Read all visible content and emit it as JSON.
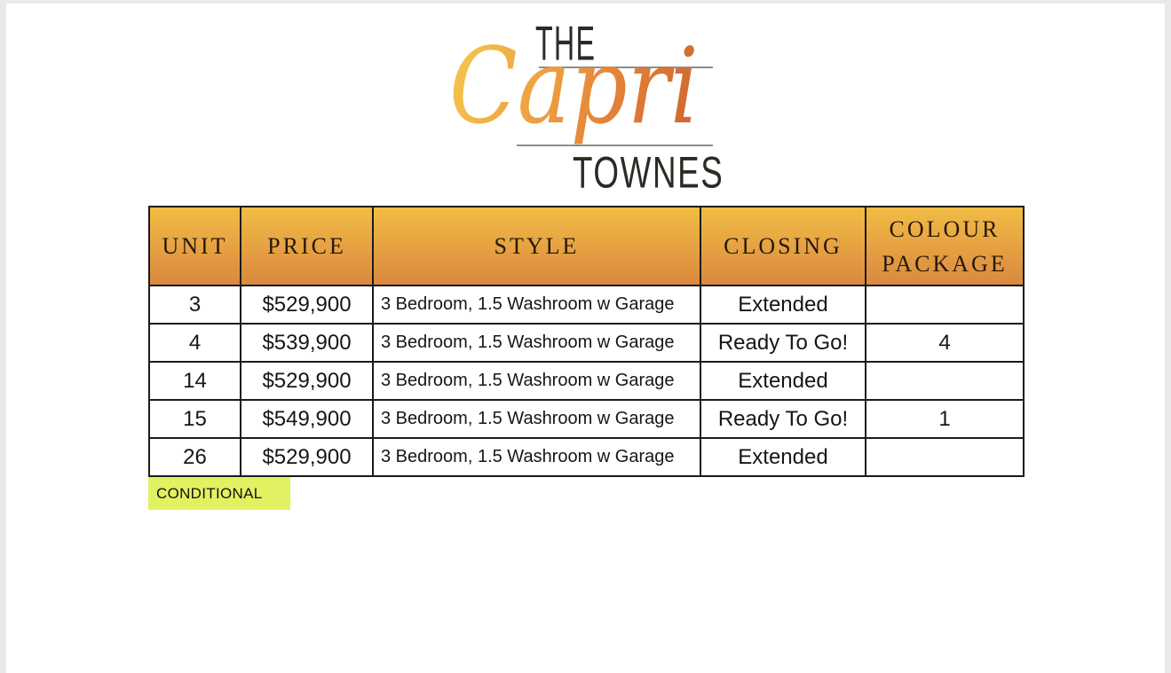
{
  "window": {
    "background_color": "#e9e9eb",
    "paper_color": "#ffffff"
  },
  "logo": {
    "top_word": "THE",
    "script_word": "Capri",
    "bottom_word": "TOWNES",
    "dark_text_color": "#2d2a26",
    "rule_color": "#8d8d8d",
    "script_gradient": [
      "#f3c24a",
      "#ec9a3e",
      "#d0692d"
    ]
  },
  "pricing_table": {
    "headers": [
      "UNIT",
      "PRICE",
      "STYLE",
      "CLOSING",
      "COLOUR PACKAGE"
    ],
    "header_gradient_top": "#f2bc45",
    "header_gradient_bottom": "#da8940",
    "header_text_color": "#27190a",
    "border_color": "#1b1b1b",
    "rows": [
      {
        "unit": "3",
        "price": "$529,900",
        "style": "3 Bedroom, 1.5 Washroom w Garage",
        "closing": "Extended",
        "colour_package": ""
      },
      {
        "unit": "4",
        "price": "$539,900",
        "style": "3 Bedroom, 1.5 Washroom w Garage",
        "closing": "Ready To Go!",
        "colour_package": "4"
      },
      {
        "unit": "14",
        "price": "$529,900",
        "style": "3 Bedroom, 1.5 Washroom w Garage",
        "closing": "Extended",
        "colour_package": ""
      },
      {
        "unit": "15",
        "price": "$549,900",
        "style": "3 Bedroom, 1.5 Washroom w Garage",
        "closing": "Ready To Go!",
        "colour_package": "1"
      },
      {
        "unit": "26",
        "price": "$529,900",
        "style": "3 Bedroom, 1.5 Washroom w Garage",
        "closing": "Extended",
        "colour_package": ""
      }
    ]
  },
  "legend": {
    "label": "CONDITIONAL",
    "highlight_color": "#e2f161",
    "text_color": "#111111"
  }
}
